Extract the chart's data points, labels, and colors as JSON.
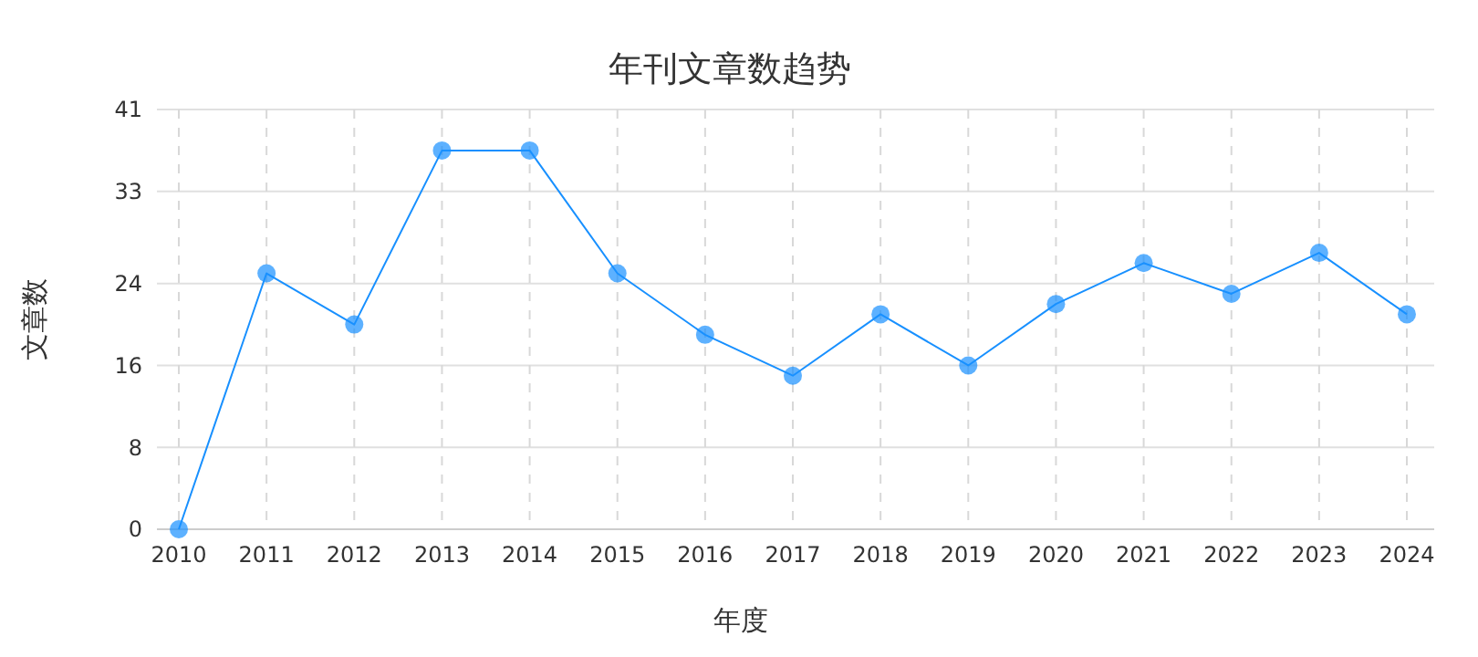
{
  "chart_data": {
    "type": "line",
    "title": "年刊文章数趋势",
    "xlabel": "年度",
    "ylabel": "文章数",
    "categories": [
      "2010",
      "2011",
      "2012",
      "2013",
      "2014",
      "2015",
      "2016",
      "2017",
      "2018",
      "2019",
      "2020",
      "2021",
      "2022",
      "2023",
      "2024"
    ],
    "series": [
      {
        "color": "#1890ff",
        "values": [
          0,
          25,
          20,
          37,
          37,
          25,
          19,
          15,
          21,
          16,
          22,
          26,
          23,
          27,
          21
        ]
      }
    ],
    "ylim": [
      0,
      41
    ],
    "yticks": [
      0,
      8,
      16,
      24,
      33,
      41
    ],
    "grid": true,
    "marker": "circle",
    "line_style": "solid"
  }
}
